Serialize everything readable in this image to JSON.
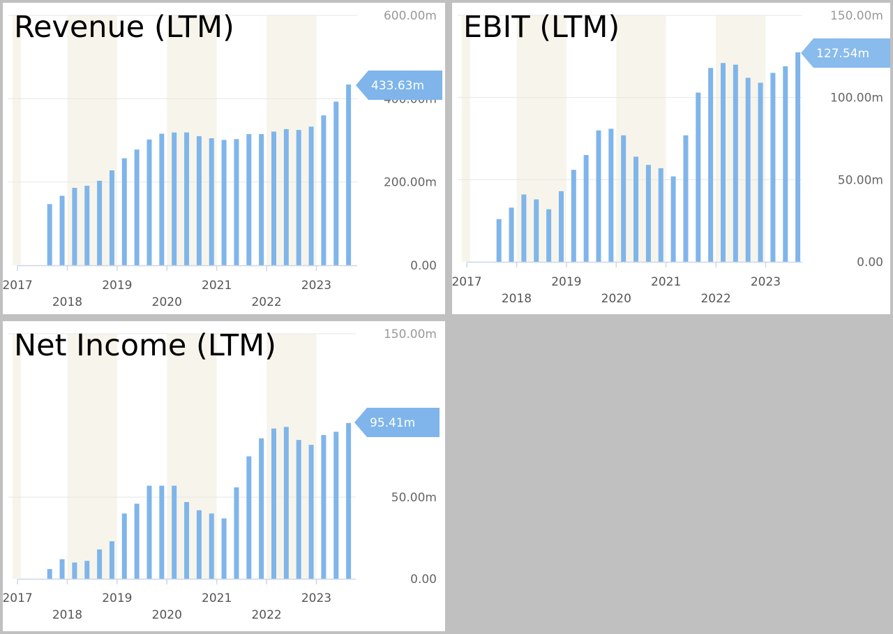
{
  "colors": {
    "bar": "#7fb5ea",
    "badge": "#7fb5ea",
    "shade": "#f7f5eb",
    "grid": "#e6e6e6",
    "axis": "#ccd6eb",
    "background": "#ffffff"
  },
  "chart_data": [
    {
      "type": "bar",
      "title": "Revenue (LTM)",
      "ylim": [
        0,
        600
      ],
      "yticks": [
        {
          "value": 0,
          "label": "0.00"
        },
        {
          "value": 200,
          "label": "200.00m"
        },
        {
          "value": 400,
          "label": "400.00m"
        },
        {
          "value": 600,
          "label": "600.00m"
        }
      ],
      "xticks_upper": [
        "2017",
        "2019",
        "2021",
        "2023"
      ],
      "xticks_lower": [
        "2018",
        "2020",
        "2022"
      ],
      "last_value_label": "433.63m",
      "values": [
        0,
        0,
        147,
        167,
        186,
        191,
        203,
        228,
        257,
        278,
        302,
        316,
        319,
        319,
        310,
        305,
        301,
        303,
        315,
        315,
        321,
        327,
        325,
        333,
        360,
        393,
        434
      ],
      "grid": true,
      "legend": "none"
    },
    {
      "type": "bar",
      "title": "EBIT (LTM)",
      "ylim": [
        0,
        150
      ],
      "yticks": [
        {
          "value": 0,
          "label": "0.00"
        },
        {
          "value": 50,
          "label": "50.00m"
        },
        {
          "value": 100,
          "label": "100.00m"
        },
        {
          "value": 150,
          "label": "150.00m"
        }
      ],
      "xticks_upper": [
        "2017",
        "2019",
        "2021",
        "2023"
      ],
      "xticks_lower": [
        "2018",
        "2020",
        "2022"
      ],
      "last_value_label": "127.54m",
      "values": [
        0,
        0,
        26,
        33,
        41,
        38,
        32,
        43,
        56,
        65,
        80,
        81,
        77,
        64,
        59,
        57,
        52,
        77,
        103,
        118,
        121,
        120,
        112,
        109,
        115,
        119,
        127.5
      ],
      "grid": true,
      "legend": "none"
    },
    {
      "type": "bar",
      "title": "Net Income (LTM)",
      "ylim": [
        0,
        150
      ],
      "yticks": [
        {
          "value": 0,
          "label": "0.00"
        },
        {
          "value": 50,
          "label": "50.00m"
        },
        {
          "value": 150,
          "label": "150.00m"
        }
      ],
      "xticks_upper": [
        "2017",
        "2019",
        "2021",
        "2023"
      ],
      "xticks_lower": [
        "2018",
        "2020",
        "2022"
      ],
      "last_value_label": "95.41m",
      "values": [
        0,
        0,
        6,
        12,
        10,
        11,
        18,
        23,
        40,
        46,
        57,
        57,
        57,
        47,
        42,
        40,
        37,
        56,
        75,
        86,
        92,
        93,
        85,
        82,
        88,
        90,
        95.4
      ],
      "grid": true,
      "legend": "none"
    }
  ]
}
